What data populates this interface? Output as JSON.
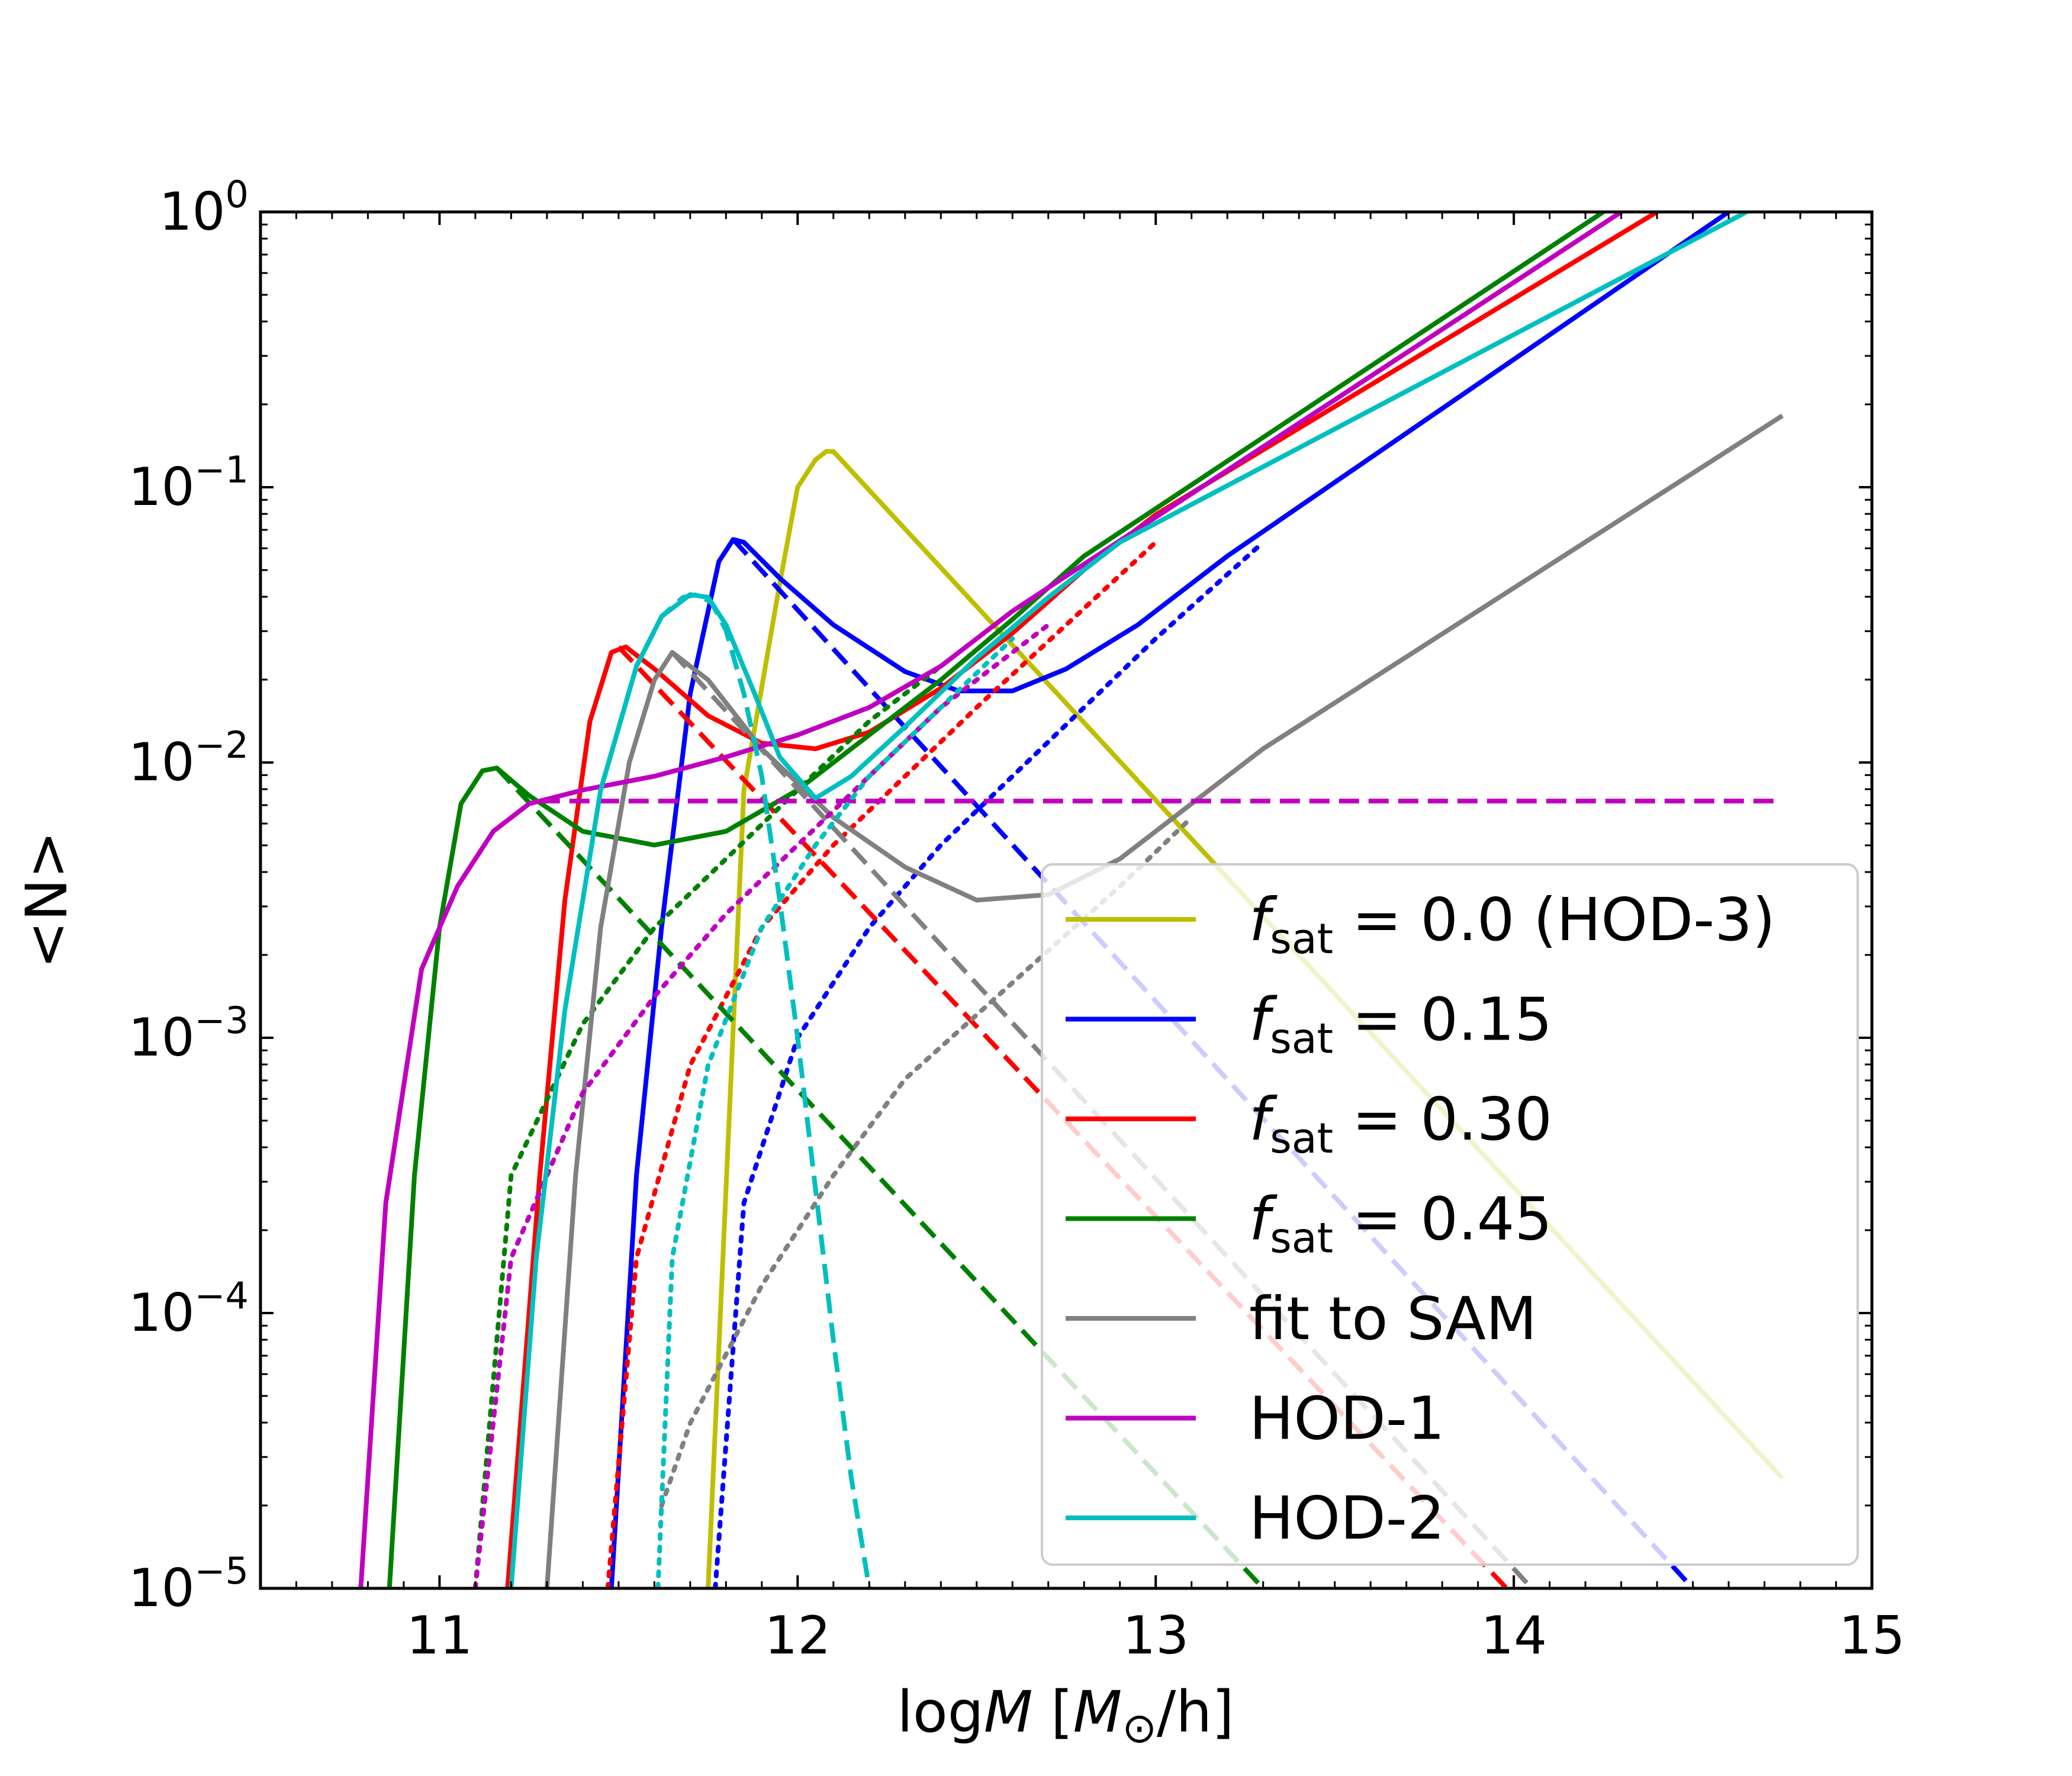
{
  "chart_data": {
    "type": "line",
    "title": "",
    "xlabel": "logM [M_sun/h]",
    "ylabel": "<N>",
    "xlabel_parts": {
      "prefix": "log",
      "var": "M",
      "unit_open": "[",
      "unit_var": "M",
      "unit_sub": "⊙",
      "unit_rest": "/h]"
    },
    "ylabel_text": "<N>",
    "xlim": [
      10.5,
      15.0
    ],
    "ylim_log10": [
      -5,
      0
    ],
    "x_ticks": [
      11,
      12,
      13,
      14,
      15
    ],
    "x_tick_labels": [
      "11",
      "12",
      "13",
      "14",
      "15"
    ],
    "y_tick_exponents": [
      0,
      -1,
      -2,
      -3,
      -4,
      -5
    ],
    "y_tick_base": "10",
    "y_tick_labels": [
      "10^0",
      "10^-1",
      "10^-2",
      "10^-3",
      "10^-4",
      "10^-5"
    ],
    "legend_position": "lower-right",
    "legend": [
      {
        "key": "hod3",
        "pre": "f",
        "sub": "sat",
        "post": " = 0.0 (HOD-3)",
        "color": "#bfbf00"
      },
      {
        "key": "f015",
        "pre": "f",
        "sub": "sat",
        "post": " = 0.15",
        "color": "#0000ff"
      },
      {
        "key": "f030",
        "pre": "f",
        "sub": "sat",
        "post": " = 0.30",
        "color": "#ff0000"
      },
      {
        "key": "f045",
        "pre": "f",
        "sub": "sat",
        "post": " = 0.45",
        "color": "#008000"
      },
      {
        "key": "sam",
        "pre": "",
        "sub": "",
        "post": "fit to SAM",
        "color": "#808080"
      },
      {
        "key": "hod1",
        "pre": "",
        "sub": "",
        "post": "HOD-1",
        "color": "#bf00bf"
      },
      {
        "key": "hod2",
        "pre": "",
        "sub": "",
        "post": "HOD-2",
        "color": "#00bfbf"
      }
    ],
    "series": [
      {
        "name": "f_sat = 0.0 (HOD-3) total",
        "color": "#bfbf00",
        "style": "solid",
        "x": [
          11.75,
          11.85,
          11.95,
          12.0,
          12.05,
          12.08,
          12.1,
          14.75
        ],
        "log10y": [
          -5.0,
          -2.1,
          -1.35,
          -1.0,
          -0.9,
          -0.87,
          -0.87,
          -4.6
        ]
      },
      {
        "name": "f_sat = 0.15 total",
        "color": "#0000ff",
        "style": "solid",
        "x": [
          11.48,
          11.55,
          11.62,
          11.7,
          11.78,
          11.82,
          11.85,
          11.95,
          12.1,
          12.3,
          12.45,
          12.6,
          12.75,
          12.95,
          13.2,
          14.6
        ],
        "log10y": [
          -5.0,
          -3.5,
          -2.6,
          -1.75,
          -1.27,
          -1.19,
          -1.2,
          -1.33,
          -1.5,
          -1.67,
          -1.74,
          -1.74,
          -1.66,
          -1.5,
          -1.25,
          0.0
        ]
      },
      {
        "name": "f_sat = 0.15 central",
        "color": "#0000ff",
        "style": "dashed",
        "x": [
          11.82,
          14.5
        ],
        "log10y": [
          -1.19,
          -5.0
        ]
      },
      {
        "name": "f_sat = 0.15 satellite",
        "color": "#0000ff",
        "style": "dotted",
        "x": [
          11.77,
          11.85,
          12.0,
          12.2,
          12.4,
          12.6,
          12.8,
          13.0,
          13.3
        ],
        "log10y": [
          -5.0,
          -3.6,
          -3.0,
          -2.6,
          -2.3,
          -2.05,
          -1.8,
          -1.55,
          -1.2
        ]
      },
      {
        "name": "f_sat = 0.30 total",
        "color": "#ff0000",
        "style": "solid",
        "x": [
          11.19,
          11.28,
          11.35,
          11.42,
          11.48,
          11.52,
          11.6,
          11.75,
          11.9,
          12.05,
          12.2,
          12.4,
          12.6,
          12.8,
          13.0,
          14.4
        ],
        "log10y": [
          -5.0,
          -3.5,
          -2.5,
          -1.85,
          -1.6,
          -1.58,
          -1.66,
          -1.83,
          -1.93,
          -1.95,
          -1.89,
          -1.73,
          -1.53,
          -1.3,
          -1.1,
          0.0
        ]
      },
      {
        "name": "f_sat = 0.30 central",
        "color": "#ff0000",
        "style": "dashed",
        "x": [
          11.5,
          13.98
        ],
        "log10y": [
          -1.58,
          -5.0
        ]
      },
      {
        "name": "f_sat = 0.30 satellite",
        "color": "#ff0000",
        "style": "dotted",
        "x": [
          11.47,
          11.55,
          11.7,
          11.9,
          12.1,
          12.3,
          12.5,
          12.75,
          13.0
        ],
        "log10y": [
          -5.0,
          -3.8,
          -3.1,
          -2.6,
          -2.3,
          -2.05,
          -1.8,
          -1.5,
          -1.2
        ]
      },
      {
        "name": "f_sat = 0.45 total",
        "color": "#008000",
        "style": "solid",
        "x": [
          10.86,
          10.93,
          11.0,
          11.06,
          11.12,
          11.16,
          11.25,
          11.4,
          11.6,
          11.8,
          12.0,
          12.2,
          12.4,
          12.6,
          12.8,
          14.25
        ],
        "log10y": [
          -5.0,
          -3.5,
          -2.6,
          -2.15,
          -2.03,
          -2.02,
          -2.12,
          -2.25,
          -2.3,
          -2.25,
          -2.1,
          -1.9,
          -1.7,
          -1.48,
          -1.25,
          0.0
        ]
      },
      {
        "name": "f_sat = 0.45 central",
        "color": "#008000",
        "style": "dashed",
        "x": [
          11.16,
          13.3
        ],
        "log10y": [
          -2.02,
          -5.0
        ]
      },
      {
        "name": "f_sat = 0.45 satellite",
        "color": "#008000",
        "style": "dotted",
        "x": [
          11.1,
          11.2,
          11.4,
          11.6,
          11.8,
          12.0,
          12.2,
          12.4
        ],
        "log10y": [
          -5.0,
          -3.5,
          -2.95,
          -2.6,
          -2.35,
          -2.1,
          -1.85,
          -1.65
        ]
      },
      {
        "name": "fit to SAM total",
        "color": "#808080",
        "style": "solid",
        "x": [
          11.3,
          11.38,
          11.45,
          11.53,
          11.6,
          11.65,
          11.75,
          11.9,
          12.1,
          12.3,
          12.5,
          12.7,
          12.9,
          13.1,
          13.3,
          14.75
        ],
        "log10y": [
          -5.0,
          -3.5,
          -2.6,
          -2.0,
          -1.7,
          -1.6,
          -1.7,
          -1.95,
          -2.2,
          -2.38,
          -2.5,
          -2.48,
          -2.35,
          -2.15,
          -1.95,
          -0.74
        ]
      },
      {
        "name": "fit to SAM central",
        "color": "#808080",
        "style": "dashed",
        "x": [
          11.65,
          14.05
        ],
        "log10y": [
          -1.6,
          -5.0
        ]
      },
      {
        "name": "fit to SAM satellite",
        "color": "#808080",
        "style": "dotted",
        "x": [
          11.62,
          11.7,
          11.9,
          12.1,
          12.3,
          12.6,
          12.9,
          13.1
        ],
        "log10y": [
          -4.7,
          -4.4,
          -3.9,
          -3.5,
          -3.15,
          -2.8,
          -2.45,
          -2.2
        ]
      },
      {
        "name": "HOD-1 total",
        "color": "#bf00bf",
        "style": "solid",
        "x": [
          10.78,
          10.85,
          10.95,
          11.05,
          11.15,
          11.25,
          11.4,
          11.6,
          11.8,
          12.0,
          12.2,
          12.4,
          12.6,
          14.3
        ],
        "log10y": [
          -5.0,
          -3.6,
          -2.75,
          -2.45,
          -2.25,
          -2.15,
          -2.1,
          -2.05,
          -1.98,
          -1.9,
          -1.8,
          -1.65,
          -1.45,
          0.0
        ]
      },
      {
        "name": "HOD-1 central",
        "color": "#bf00bf",
        "style": "dashed",
        "x": [
          11.28,
          14.75
        ],
        "log10y": [
          -2.14,
          -2.14
        ]
      },
      {
        "name": "HOD-1 satellite",
        "color": "#bf00bf",
        "style": "dotted",
        "x": [
          11.1,
          11.2,
          11.4,
          11.6,
          11.8,
          12.0,
          12.2,
          12.4,
          12.7
        ],
        "log10y": [
          -5.0,
          -3.8,
          -3.2,
          -2.85,
          -2.55,
          -2.3,
          -2.05,
          -1.8,
          -1.5
        ]
      },
      {
        "name": "HOD-2 total",
        "color": "#00bfbf",
        "style": "solid",
        "x": [
          11.2,
          11.27,
          11.35,
          11.45,
          11.55,
          11.62,
          11.7,
          11.75,
          11.8,
          11.88,
          11.95,
          12.05,
          12.15,
          12.3,
          12.5,
          12.7,
          12.9,
          14.65
        ],
        "log10y": [
          -5.0,
          -3.8,
          -2.9,
          -2.1,
          -1.65,
          -1.47,
          -1.39,
          -1.4,
          -1.5,
          -1.75,
          -1.98,
          -2.13,
          -2.05,
          -1.87,
          -1.62,
          -1.4,
          -1.2,
          0.0
        ]
      },
      {
        "name": "HOD-2 central",
        "color": "#00bfbf",
        "style": "dashed",
        "x": [
          11.45,
          11.55,
          11.62,
          11.68,
          11.72,
          11.76,
          11.8,
          11.85,
          11.9,
          11.95,
          12.0,
          12.05,
          12.1,
          12.15,
          12.2
        ],
        "log10y": [
          -2.1,
          -1.65,
          -1.47,
          -1.4,
          -1.39,
          -1.42,
          -1.52,
          -1.75,
          -2.05,
          -2.5,
          -3.0,
          -3.55,
          -4.1,
          -4.6,
          -5.0
        ]
      },
      {
        "name": "HOD-2 satellite",
        "color": "#00bfbf",
        "style": "dotted",
        "x": [
          11.61,
          11.65,
          11.75,
          11.9,
          12.05,
          12.2,
          12.4,
          12.6
        ],
        "log10y": [
          -5.0,
          -3.8,
          -3.1,
          -2.6,
          -2.3,
          -2.05,
          -1.8,
          -1.55
        ]
      }
    ]
  }
}
